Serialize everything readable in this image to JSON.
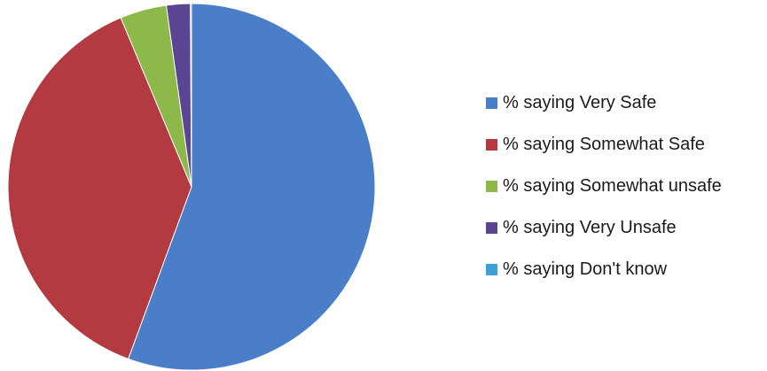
{
  "chart_data": {
    "type": "pie",
    "title": "",
    "categories": [
      "% saying Very Safe",
      "% saying Somewhat Safe",
      "% saying Somewhat unsafe",
      "% saying Very Unsafe",
      "% saying Don't know"
    ],
    "values": [
      55.6,
      38.1,
      4.1,
      2.1,
      0.1
    ],
    "colors": [
      "#4A7EC8",
      "#B33A40",
      "#8DB84A",
      "#5B4593",
      "#3E9ED6"
    ],
    "legend_position": "right"
  }
}
